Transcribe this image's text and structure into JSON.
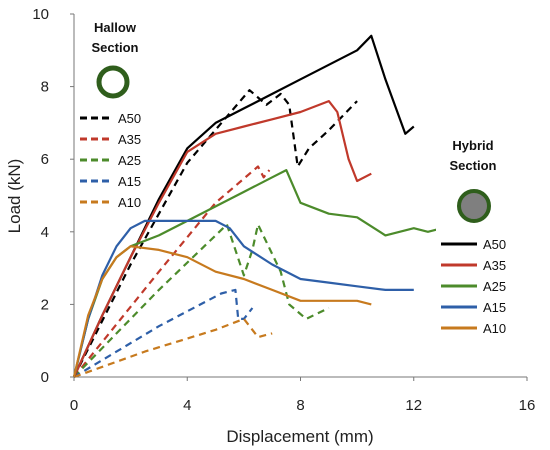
{
  "chart_data": {
    "type": "line",
    "xlabel": "Displacement (mm)",
    "ylabel": "Load (kN)",
    "xlim": [
      0,
      16
    ],
    "ylim": [
      0,
      10
    ],
    "xticks": [
      "0",
      "4",
      "8",
      "12",
      "16"
    ],
    "yticks": [
      "0",
      "2",
      "4",
      "6",
      "8",
      "10"
    ],
    "grid": "none",
    "groups": [
      {
        "title_lines": [
          "Hallow",
          "Section"
        ],
        "icon": "hollow-ring",
        "legend_position": "top-left",
        "line_style": "dashed",
        "series": [
          {
            "name": "A50",
            "color": "#000000",
            "x": [
              0,
              2,
              4,
              6.2,
              6.8,
              7.3,
              7.6,
              7.9,
              8.3,
              9,
              10
            ],
            "y": [
              0,
              3.1,
              5.9,
              7.9,
              7.5,
              7.8,
              7.5,
              5.8,
              6.3,
              6.8,
              7.6
            ]
          },
          {
            "name": "A35",
            "color": "#C0392B",
            "x": [
              0,
              3,
              5,
              6.5,
              6.7,
              6.9
            ],
            "y": [
              0,
              2.9,
              4.8,
              5.8,
              5.5,
              5.7
            ]
          },
          {
            "name": "A25",
            "color": "#4C8B2B",
            "x": [
              0,
              3,
              5,
              5.4,
              6,
              6.3,
              6.5,
              7.3,
              7.6,
              8.2,
              9
            ],
            "y": [
              0,
              2.4,
              3.9,
              4.2,
              2.8,
              3.5,
              4.2,
              2.9,
              2.0,
              1.6,
              1.9
            ]
          },
          {
            "name": "A15",
            "color": "#2E5FA8",
            "x": [
              0,
              3,
              5.2,
              5.7,
              5.8,
              6.0,
              6.3
            ],
            "y": [
              0,
              1.4,
              2.3,
              2.4,
              1.6,
              1.6,
              1.9
            ]
          },
          {
            "name": "A10",
            "color": "#C77A1E",
            "x": [
              0,
              2.5,
              5,
              6.0,
              6.5,
              7.0
            ],
            "y": [
              0,
              0.7,
              1.3,
              1.6,
              1.1,
              1.2
            ]
          }
        ]
      },
      {
        "title_lines": [
          "Hybrid",
          "Section"
        ],
        "icon": "filled-circle",
        "legend_position": "right",
        "line_style": "solid",
        "series": [
          {
            "name": "A50",
            "color": "#000000",
            "x": [
              0,
              1,
              2,
              3,
              4,
              5,
              6,
              7,
              8,
              9,
              10,
              10.5,
              11,
              11.7,
              12
            ],
            "y": [
              0,
              1.7,
              3.3,
              4.9,
              6.3,
              7.0,
              7.4,
              7.8,
              8.2,
              8.6,
              9.0,
              9.4,
              8.2,
              6.7,
              6.9
            ]
          },
          {
            "name": "A35",
            "color": "#C0392B",
            "x": [
              0,
              1,
              2,
              3,
              4,
              5,
              6,
              7,
              8,
              9,
              9.3,
              9.7,
              10,
              10.5
            ],
            "y": [
              0,
              1.7,
              3.3,
              4.8,
              6.2,
              6.7,
              6.9,
              7.1,
              7.3,
              7.6,
              7.3,
              6.0,
              5.4,
              5.6
            ]
          },
          {
            "name": "A25",
            "color": "#4C8B2B",
            "x": [
              0,
              0.5,
              1,
              1.5,
              2,
              3,
              4,
              5,
              6,
              7,
              7.5,
              8,
              9,
              10,
              11,
              12,
              12.5,
              13
            ],
            "y": [
              0,
              1.6,
              2.7,
              3.3,
              3.6,
              3.9,
              4.3,
              4.7,
              5.1,
              5.5,
              5.7,
              4.8,
              4.5,
              4.4,
              3.9,
              4.1,
              4.0,
              4.1
            ]
          },
          {
            "name": "A15",
            "color": "#2E5FA8",
            "x": [
              0,
              0.5,
              1,
              1.5,
              2,
              2.5,
              3,
              4,
              5,
              5.5,
              6,
              7,
              8,
              9,
              10,
              11,
              12
            ],
            "y": [
              0,
              1.6,
              2.8,
              3.6,
              4.1,
              4.3,
              4.3,
              4.3,
              4.3,
              4.1,
              3.6,
              3.1,
              2.7,
              2.6,
              2.5,
              2.4,
              2.4
            ]
          },
          {
            "name": "A10",
            "color": "#C77A1E",
            "x": [
              0,
              0.5,
              1,
              1.5,
              2,
              3,
              4,
              5,
              6,
              7,
              8,
              9,
              10,
              10.5
            ],
            "y": [
              0,
              1.7,
              2.7,
              3.3,
              3.6,
              3.5,
              3.3,
              2.9,
              2.7,
              2.4,
              2.1,
              2.1,
              2.1,
              2.0
            ]
          }
        ]
      }
    ]
  }
}
